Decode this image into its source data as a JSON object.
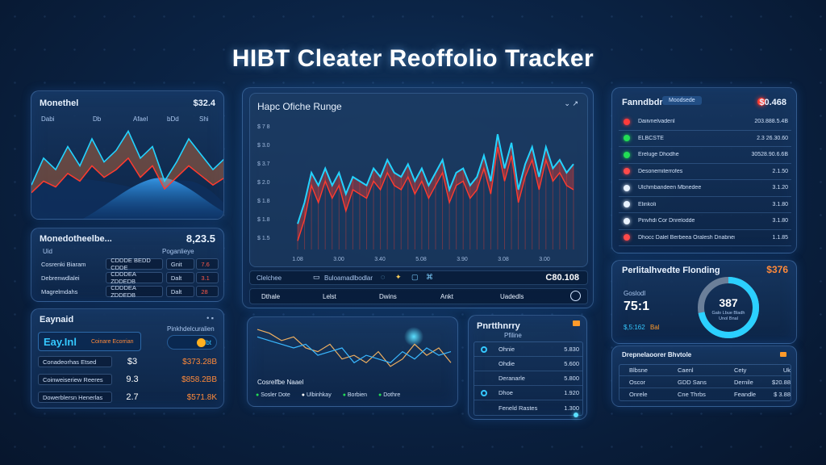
{
  "app": {
    "title": "HIBT Cleater Reoffolio Tracker"
  },
  "top_left": {
    "title": "Monethel",
    "value": "$32.4",
    "tags": [
      "Dabi",
      "Db",
      "Afael",
      "bDd",
      "Shi"
    ]
  },
  "portfolio_table": {
    "title": "Monedotheelbe...",
    "value": "8,23.5",
    "headers": [
      "Uid",
      "Poganlieye"
    ],
    "rows": [
      {
        "name": "Cosrenki Biaram",
        "amount": "CDDDE BEDD CDDE",
        "tag": "Gnit",
        "change": "7.6"
      },
      {
        "name": "Debrenwdlalei",
        "amount": "CDDDEA ZDDEDB",
        "tag": "Dalt",
        "change": "3.1"
      },
      {
        "name": "Magrelmdahs",
        "amount": "CDDDEA ZDDEDB",
        "tag": "Dalt",
        "change": "28"
      }
    ]
  },
  "balance_panel": {
    "title": "Eaynaid",
    "big_value": "Eay.Inl",
    "sub_label": "Coinare Ecorrian",
    "right_label": "Pinkhdelcuralien",
    "right_value": "Hbt",
    "rows": [
      {
        "name": "Conadeorhas Etsed",
        "mid": "$3",
        "value": "$373.28B"
      },
      {
        "name": "Coinweiseriew Reeres",
        "mid": "9.3",
        "value": "$858.2BB"
      },
      {
        "name": "Dowerblersn Henerlas",
        "mid": "2.7",
        "value": "$571.8K"
      }
    ]
  },
  "main_chart": {
    "title": "Hapc Ofiche Runge",
    "ytick_labels": [
      "$ 7 8",
      "$ 3.0",
      "$ 3.7",
      "$ 2.0",
      "$ 1.8",
      "$ 1.8",
      "$ 1.5"
    ],
    "xtick_labels": [
      "1.08",
      "3.00",
      "3.40",
      "5.08",
      "3.90",
      "3.08",
      "3.00"
    ]
  },
  "main_toolbar": {
    "items": [
      "Clelchee",
      "Buloamadlbodlar"
    ],
    "value": "C80.108",
    "tabs": [
      "Dthale",
      "Lelst",
      "Dwins",
      "Ankt",
      "Uadedls"
    ]
  },
  "mini_chart": {
    "caption": "Cosrelfbe Naael",
    "legend": [
      "Sosler Dote",
      "Ulbinhkay",
      "Borbien",
      "Dothre"
    ]
  },
  "holdings": {
    "title": "Pnrtthnrry",
    "header": "Pfiline",
    "rows": [
      {
        "name": "Ohnie",
        "value": "5.830"
      },
      {
        "name": "Ohdie",
        "value": "5.600"
      },
      {
        "name": "Deranarle",
        "value": "5.800"
      },
      {
        "name": "Dhoe",
        "value": "1.920"
      },
      {
        "name": "Feneld Rastes",
        "value": "1.300"
      }
    ]
  },
  "favorites": {
    "title": "Fanndbdr",
    "badge": "Moodsede",
    "value": "$0.468",
    "rows": [
      {
        "name": "Daiivnelvadenl",
        "value": "203.888.5.4B",
        "color": "#ff3b3b"
      },
      {
        "name": "ELBCSTE",
        "value": "2.3 26.30.60",
        "color": "#22dd55"
      },
      {
        "name": "Ereluge Dhodhe",
        "value": "30528.90.6.6B",
        "color": "#22dd55"
      },
      {
        "name": "Desonemiterrofes",
        "value": "2.1.50",
        "color": "#ff4a4a"
      },
      {
        "name": "Ulchmbandeen Mbnedee",
        "value": "3.1.20",
        "color": "#e8f2ff"
      },
      {
        "name": "Elinkoli",
        "value": "3.1.80",
        "color": "#e8f2ff"
      },
      {
        "name": "Pinvhdi Cor Dnrelodde",
        "value": "3.1.80",
        "color": "#e8f2ff"
      },
      {
        "name": "Dhocc Dalel Berbeea Oralesh Dnabner",
        "value": "1.1.85",
        "color": "#ff4a4a"
      }
    ]
  },
  "gauge": {
    "title": "Perlitalhvedte Flonding",
    "value": "$376",
    "left_label": "Goslodl",
    "left_value": "75:1",
    "left_sub": "$,5:162",
    "left_badge": "Bal",
    "center_value": "387",
    "center_sub": "Galo Lbue Bladh Unol Bnal",
    "fraction": 0.72
  },
  "bottom_table": {
    "title": "Drepnelaoorer Bhvtole",
    "headers": [
      "Blbsne",
      "Caenl",
      "Cety",
      "Uk"
    ],
    "rows": [
      {
        "c1": "Oscor",
        "c2": "GDD Sans",
        "c3": "Dernile",
        "c4": "$20.88"
      },
      {
        "c1": "Onrele",
        "c2": "Cne Thrbs",
        "c3": "Feandle",
        "c4": "$ 3.88"
      }
    ]
  },
  "colors": {
    "cyan": "#23d3ff",
    "orange": "#ff7a2a",
    "red": "#ff3b2f"
  },
  "chart_data": [
    {
      "type": "area",
      "title": "Monethel",
      "series": [
        {
          "values": [
            10,
            24,
            18,
            30,
            20,
            34,
            22,
            28,
            38,
            24,
            30,
            12,
            22,
            34,
            26,
            18,
            24
          ]
        },
        {
          "values": [
            6,
            12,
            9,
            16,
            12,
            20,
            14,
            18,
            24,
            14,
            20,
            8,
            14,
            20,
            15,
            10,
            14
          ]
        }
      ]
    },
    {
      "type": "line",
      "title": "Hapc Ofiche Runge",
      "series": [
        {
          "values": [
            1.4,
            1.9,
            2.6,
            2.3,
            2.7,
            2.3,
            2.6,
            2.1,
            2.5,
            2.4,
            2.3,
            2.7,
            2.5,
            2.9,
            2.6,
            2.5,
            2.8,
            2.4,
            2.7,
            2.3,
            2.6,
            2.9,
            2.2,
            2.6,
            2.7,
            2.3,
            2.5,
            3.0,
            2.4,
            3.5,
            2.7,
            3.3,
            2.2,
            2.8,
            3.2,
            2.5,
            3.2,
            2.7,
            2.9,
            2.6,
            2.8
          ]
        },
        {
          "values": [
            1.0,
            1.5,
            2.3,
            1.9,
            2.4,
            2.0,
            2.3,
            1.7,
            2.2,
            2.1,
            2.0,
            2.4,
            2.2,
            2.6,
            2.3,
            2.2,
            2.5,
            2.1,
            2.4,
            2.0,
            2.3,
            2.6,
            1.9,
            2.3,
            2.4,
            2.0,
            2.2,
            2.7,
            2.1,
            3.2,
            2.4,
            3.0,
            1.9,
            2.5,
            2.9,
            2.2,
            2.9,
            2.4,
            2.6,
            2.3,
            2.2
          ]
        }
      ]
    },
    {
      "type": "line",
      "title": "Cosrelfbe Naael",
      "series": [
        {
          "values": [
            30,
            28,
            24,
            26,
            20,
            18,
            22,
            14,
            16,
            12,
            18,
            10,
            14,
            22,
            16,
            20,
            12
          ]
        },
        {
          "values": [
            26,
            24,
            22,
            20,
            22,
            16,
            18,
            20,
            12,
            16,
            14,
            12,
            18,
            14,
            20,
            16,
            18
          ]
        }
      ]
    }
  ]
}
